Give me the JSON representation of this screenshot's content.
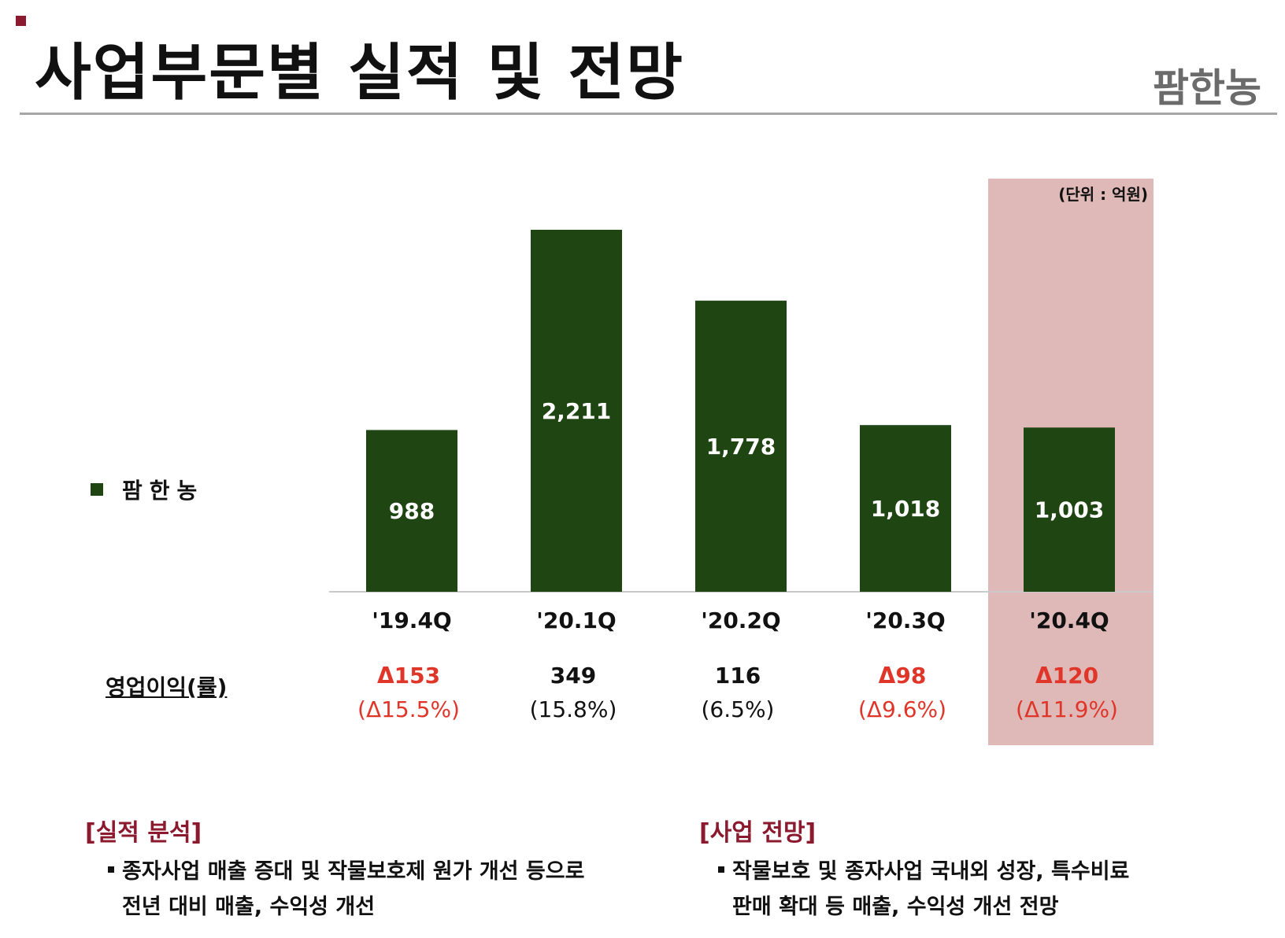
{
  "header": {
    "title": "사업부문별 실적 및 전망",
    "brand": "팜한농"
  },
  "colors": {
    "bar": "#1e4512",
    "highlight": "#dfb8b8",
    "negative": "#e0362a",
    "accent": "#8b1a2e"
  },
  "chart_data": {
    "type": "bar",
    "unit_note": "(단위 : 억원)",
    "categories": [
      "'19.4Q",
      "'20.1Q",
      "'20.2Q",
      "'20.3Q",
      "'20.4Q"
    ],
    "series": [
      {
        "name": "팜한농",
        "values": [
          988,
          2211,
          1778,
          1018,
          1003
        ]
      }
    ],
    "value_labels": [
      "988",
      "2,211",
      "1,778",
      "1,018",
      "1,003"
    ],
    "highlight_category": "'20.4Q",
    "ylim": [
      0,
      2211
    ]
  },
  "legend": {
    "label": "팜한농"
  },
  "operating_profit": {
    "label": "영업이익(률)",
    "items": [
      {
        "value": "Δ153",
        "pct": "(Δ15.5%)",
        "negative": true
      },
      {
        "value": "349",
        "pct": "(15.8%)",
        "negative": false
      },
      {
        "value": "116",
        "pct": "(6.5%)",
        "negative": false
      },
      {
        "value": "Δ98",
        "pct": "(Δ9.6%)",
        "negative": true
      },
      {
        "value": "Δ120",
        "pct": "(Δ11.9%)",
        "negative": true
      }
    ]
  },
  "analysis": {
    "heading": "[실적 분석]",
    "line1": "종자사업 매출 증대 및 작물보호제 원가 개선 등으로",
    "line2": "전년 대비 매출, 수익성 개선"
  },
  "outlook": {
    "heading": "[사업 전망]",
    "line1": "작물보호 및 종자사업 국내외 성장, 특수비료",
    "line2": "판매 확대 등 매출, 수익성 개선 전망"
  }
}
